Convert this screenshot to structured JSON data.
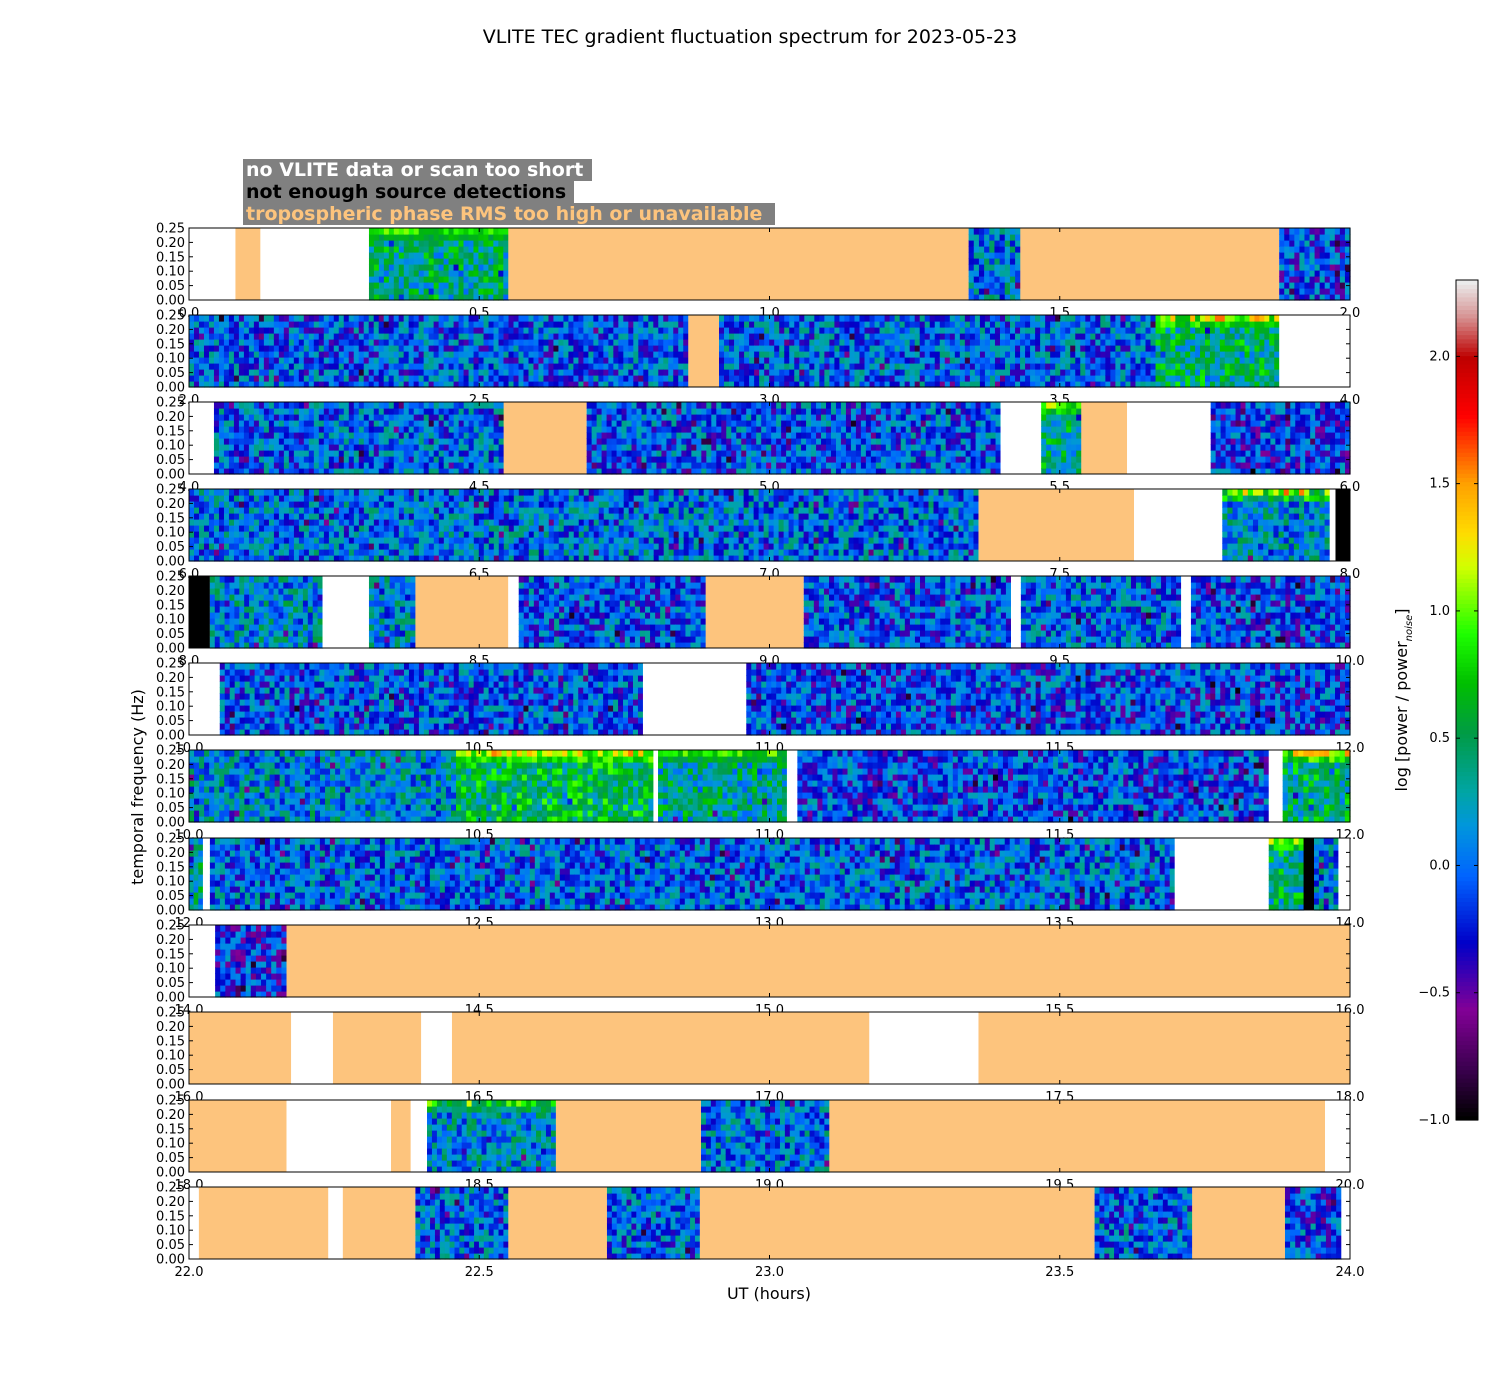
{
  "chart_data": {
    "type": "heatmap",
    "title": "VLITE TEC gradient fluctuation spectrum for 2023-05-23",
    "xlabel": "UT (hours)",
    "ylabel": "temporal frequency (Hz)",
    "colorbar_label": "log [power / power",
    "colorbar_label_sub": "noise",
    "colorbar_label_end": "]",
    "colorbar_range": [
      -1.0,
      2.3
    ],
    "colorbar_ticks": [
      "−1.0",
      "−0.5",
      "0.0",
      "0.5",
      "1.0",
      "1.5",
      "2.0"
    ],
    "colorbar_tick_values": [
      -1.0,
      -0.5,
      0.0,
      0.5,
      1.0,
      1.5,
      2.0
    ],
    "ylim": [
      0,
      0.25
    ],
    "y_ticks": [
      "0.00",
      "0.05",
      "0.10",
      "0.15",
      "0.20",
      "0.25"
    ],
    "legend": [
      {
        "label": "no VLITE data or scan too short",
        "color": "#ffffff"
      },
      {
        "label": "not enough source detections",
        "color": "#000000"
      },
      {
        "label": "tropospheric phase RMS too high or unavailable",
        "color": "#fdc47d"
      }
    ],
    "colors": {
      "no_data": "#ffffff",
      "few_detections": "#000000",
      "tropo_rms": "#fdc47d",
      "legend_box": "#808080"
    },
    "panels": [
      {
        "x_ticks": [
          "0.0",
          "0.5",
          "1.0",
          "1.5",
          "2.0"
        ],
        "xlim": [
          0,
          2
        ],
        "segments": [
          {
            "start": 0.0,
            "end": 0.08,
            "state": "nodata"
          },
          {
            "start": 0.08,
            "end": 0.123,
            "state": "tropo"
          },
          {
            "start": 0.123,
            "end": 0.31,
            "state": "nodata"
          },
          {
            "start": 0.31,
            "end": 0.55,
            "state": "data",
            "level": 0.4,
            "hot": 0.9
          },
          {
            "start": 0.55,
            "end": 1.343,
            "state": "tropo"
          },
          {
            "start": 1.343,
            "end": 1.432,
            "state": "data",
            "level": 0.1
          },
          {
            "start": 1.432,
            "end": 1.878,
            "state": "tropo"
          },
          {
            "start": 1.878,
            "end": 2.0,
            "state": "data",
            "level": -0.1
          }
        ]
      },
      {
        "x_ticks": [
          "2.0",
          "2.5",
          "3.0",
          "3.5",
          "4.0"
        ],
        "xlim": [
          2,
          4
        ],
        "segments": [
          {
            "start": 2.0,
            "end": 2.86,
            "state": "data",
            "level": -0.05
          },
          {
            "start": 2.86,
            "end": 2.913,
            "state": "tropo"
          },
          {
            "start": 2.913,
            "end": 3.665,
            "state": "data",
            "level": 0.0
          },
          {
            "start": 3.665,
            "end": 3.878,
            "state": "data",
            "level": 0.45,
            "hot": 1.4
          },
          {
            "start": 3.878,
            "end": 4.0,
            "state": "nodata"
          }
        ]
      },
      {
        "x_ticks": [
          "4.0",
          "4.5",
          "5.0",
          "5.5",
          "6.0"
        ],
        "xlim": [
          4,
          6
        ],
        "segments": [
          {
            "start": 4.0,
            "end": 4.043,
            "state": "nodata"
          },
          {
            "start": 4.043,
            "end": 4.542,
            "state": "data",
            "level": 0.0
          },
          {
            "start": 4.542,
            "end": 4.685,
            "state": "tropo"
          },
          {
            "start": 4.685,
            "end": 5.398,
            "state": "data",
            "level": -0.05
          },
          {
            "start": 5.398,
            "end": 5.468,
            "state": "nodata"
          },
          {
            "start": 5.468,
            "end": 5.537,
            "state": "data",
            "level": 0.4,
            "hot": 1.2
          },
          {
            "start": 5.537,
            "end": 5.616,
            "state": "tropo"
          },
          {
            "start": 5.616,
            "end": 5.76,
            "state": "nodata"
          },
          {
            "start": 5.76,
            "end": 6.0,
            "state": "data",
            "level": -0.15
          }
        ]
      },
      {
        "x_ticks": [
          "6.0",
          "6.5",
          "7.0",
          "7.5",
          "8.0"
        ],
        "xlim": [
          6,
          8
        ],
        "segments": [
          {
            "start": 6.0,
            "end": 7.36,
            "state": "data",
            "level": 0.05
          },
          {
            "start": 7.36,
            "end": 7.628,
            "state": "tropo"
          },
          {
            "start": 7.628,
            "end": 7.78,
            "state": "nodata"
          },
          {
            "start": 7.78,
            "end": 7.965,
            "state": "data",
            "level": 0.15,
            "hot": 1.6
          },
          {
            "start": 7.965,
            "end": 7.975,
            "state": "nodata"
          },
          {
            "start": 7.975,
            "end": 8.0,
            "state": "few"
          }
        ]
      },
      {
        "x_ticks": [
          "8.0",
          "8.5",
          "9.0",
          "9.5",
          "10.0"
        ],
        "xlim": [
          8,
          10
        ],
        "segments": [
          {
            "start": 8.0,
            "end": 8.036,
            "state": "few"
          },
          {
            "start": 8.036,
            "end": 8.23,
            "state": "data",
            "level": 0.15
          },
          {
            "start": 8.23,
            "end": 8.31,
            "state": "nodata"
          },
          {
            "start": 8.31,
            "end": 8.39,
            "state": "data",
            "level": 0.1
          },
          {
            "start": 8.39,
            "end": 8.55,
            "state": "tropo"
          },
          {
            "start": 8.55,
            "end": 8.568,
            "state": "nodata"
          },
          {
            "start": 8.568,
            "end": 8.89,
            "state": "data",
            "level": -0.05
          },
          {
            "start": 8.89,
            "end": 9.059,
            "state": "tropo"
          },
          {
            "start": 9.059,
            "end": 9.416,
            "state": "data",
            "level": -0.05
          },
          {
            "start": 9.416,
            "end": 9.433,
            "state": "nodata"
          },
          {
            "start": 9.433,
            "end": 9.709,
            "state": "data",
            "level": 0.0
          },
          {
            "start": 9.709,
            "end": 9.726,
            "state": "nodata"
          },
          {
            "start": 9.726,
            "end": 10.0,
            "state": "data",
            "level": -0.1
          }
        ]
      },
      {
        "x_ticks": [
          "10.0",
          "10.5",
          "11.0",
          "11.5",
          "12.0"
        ],
        "xlim": [
          10,
          12
        ],
        "segments": [
          {
            "start": 10.0,
            "end": 10.053,
            "state": "nodata"
          },
          {
            "start": 10.053,
            "end": 10.782,
            "state": "data",
            "level": -0.05
          },
          {
            "start": 10.782,
            "end": 10.96,
            "state": "nodata"
          },
          {
            "start": 10.96,
            "end": 12.0,
            "state": "data",
            "level": -0.1
          }
        ]
      },
      {
        "x_ticks": [
          "10.0",
          "10.5",
          "11.0",
          "11.5",
          "12.0"
        ],
        "xlim": [
          10,
          12
        ],
        "segments": [
          {
            "start": 10.0,
            "end": 10.46,
            "state": "data",
            "level": 0.15
          },
          {
            "start": 10.46,
            "end": 10.8,
            "state": "data",
            "level": 0.55,
            "hot": 1.4
          },
          {
            "start": 10.8,
            "end": 10.808,
            "state": "nodata"
          },
          {
            "start": 10.808,
            "end": 11.03,
            "state": "data",
            "level": 0.35,
            "hot": 0.9
          },
          {
            "start": 11.03,
            "end": 11.048,
            "state": "nodata"
          },
          {
            "start": 11.048,
            "end": 11.86,
            "state": "data",
            "level": -0.1
          },
          {
            "start": 11.86,
            "end": 11.884,
            "state": "nodata"
          },
          {
            "start": 11.884,
            "end": 12.0,
            "state": "data",
            "level": 0.45,
            "hot": 1.5
          }
        ]
      },
      {
        "x_ticks": [
          "12.0",
          "12.5",
          "13.0",
          "13.5",
          "14.0"
        ],
        "xlim": [
          12,
          14
        ],
        "segments": [
          {
            "start": 12.0,
            "end": 12.024,
            "state": "data",
            "level": 0.3
          },
          {
            "start": 12.024,
            "end": 12.036,
            "state": "nodata"
          },
          {
            "start": 12.036,
            "end": 13.698,
            "state": "data",
            "level": 0.0
          },
          {
            "start": 13.698,
            "end": 13.86,
            "state": "nodata"
          },
          {
            "start": 13.86,
            "end": 13.92,
            "state": "data",
            "level": 0.45,
            "hot": 1.3
          },
          {
            "start": 13.92,
            "end": 13.938,
            "state": "few"
          },
          {
            "start": 13.938,
            "end": 13.98,
            "state": "data",
            "level": 0.1
          },
          {
            "start": 13.98,
            "end": 14.0,
            "state": "nodata"
          }
        ]
      },
      {
        "x_ticks": [
          "14.0",
          "14.5",
          "15.0",
          "15.5",
          "16.0"
        ],
        "xlim": [
          14,
          16
        ],
        "segments": [
          {
            "start": 14.0,
            "end": 14.045,
            "state": "nodata"
          },
          {
            "start": 14.045,
            "end": 14.168,
            "state": "data",
            "level": -0.2
          },
          {
            "start": 14.168,
            "end": 16.0,
            "state": "tropo"
          }
        ]
      },
      {
        "x_ticks": [
          "16.0",
          "16.5",
          "17.0",
          "17.5",
          "18.0"
        ],
        "xlim": [
          16,
          18
        ],
        "segments": [
          {
            "start": 16.0,
            "end": 16.176,
            "state": "tropo"
          },
          {
            "start": 16.176,
            "end": 16.248,
            "state": "nodata"
          },
          {
            "start": 16.248,
            "end": 16.4,
            "state": "tropo"
          },
          {
            "start": 16.4,
            "end": 16.453,
            "state": "nodata"
          },
          {
            "start": 16.453,
            "end": 17.172,
            "state": "tropo"
          },
          {
            "start": 17.172,
            "end": 17.36,
            "state": "nodata"
          },
          {
            "start": 17.36,
            "end": 18.0,
            "state": "tropo"
          }
        ]
      },
      {
        "x_ticks": [
          "18.0",
          "18.5",
          "19.0",
          "19.5",
          "20.0"
        ],
        "xlim": [
          18,
          20
        ],
        "segments": [
          {
            "start": 18.0,
            "end": 18.168,
            "state": "tropo"
          },
          {
            "start": 18.168,
            "end": 18.348,
            "state": "nodata"
          },
          {
            "start": 18.348,
            "end": 18.382,
            "state": "tropo"
          },
          {
            "start": 18.382,
            "end": 18.41,
            "state": "nodata"
          },
          {
            "start": 18.41,
            "end": 18.632,
            "state": "data",
            "level": 0.15,
            "hot": 1.0
          },
          {
            "start": 18.632,
            "end": 18.882,
            "state": "tropo"
          },
          {
            "start": 18.882,
            "end": 19.103,
            "state": "data",
            "level": 0.05
          },
          {
            "start": 19.103,
            "end": 19.957,
            "state": "tropo"
          },
          {
            "start": 19.957,
            "end": 20.0,
            "state": "nodata"
          }
        ]
      },
      {
        "x_ticks": [
          "22.0",
          "22.5",
          "23.0",
          "23.5",
          "24.0"
        ],
        "xlim": [
          22,
          24
        ],
        "segments": [
          {
            "start": 22.0,
            "end": 22.017,
            "state": "nodata"
          },
          {
            "start": 22.017,
            "end": 22.24,
            "state": "tropo"
          },
          {
            "start": 22.24,
            "end": 22.265,
            "state": "nodata"
          },
          {
            "start": 22.265,
            "end": 22.39,
            "state": "tropo"
          },
          {
            "start": 22.39,
            "end": 22.55,
            "state": "data",
            "level": 0.0
          },
          {
            "start": 22.55,
            "end": 22.72,
            "state": "tropo"
          },
          {
            "start": 22.72,
            "end": 22.88,
            "state": "data",
            "level": 0.0
          },
          {
            "start": 22.88,
            "end": 23.56,
            "state": "tropo"
          },
          {
            "start": 23.56,
            "end": 23.728,
            "state": "data",
            "level": 0.0
          },
          {
            "start": 23.728,
            "end": 23.888,
            "state": "tropo"
          },
          {
            "start": 23.888,
            "end": 23.985,
            "state": "data",
            "level": -0.1
          },
          {
            "start": 23.985,
            "end": 24.0,
            "state": "nodata"
          }
        ]
      }
    ]
  }
}
